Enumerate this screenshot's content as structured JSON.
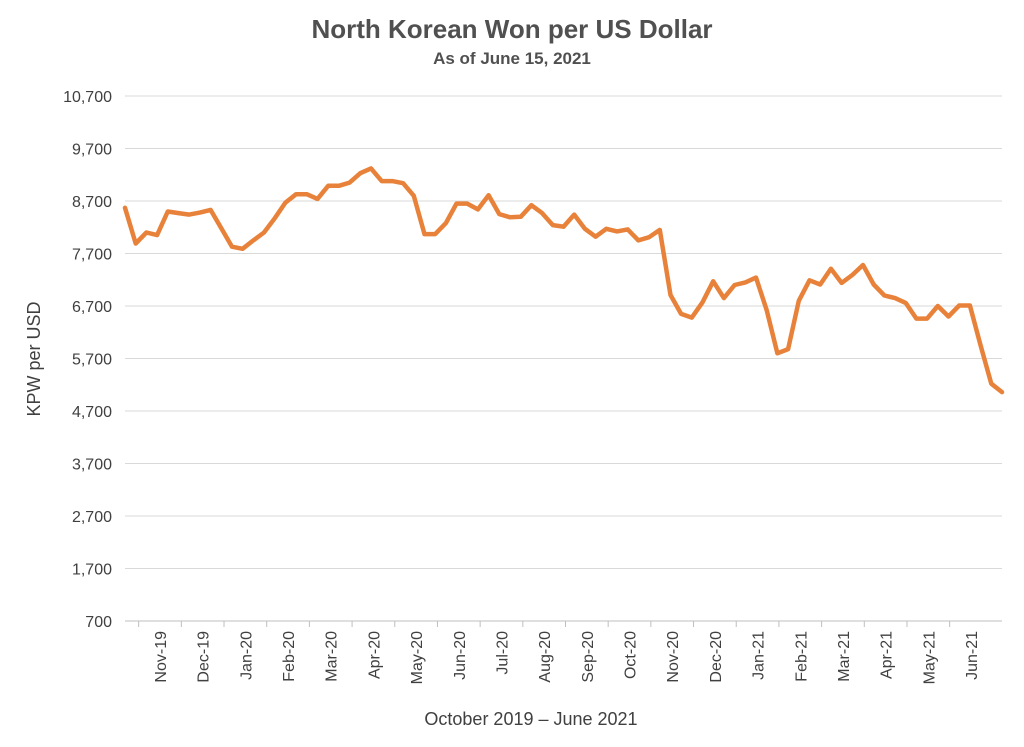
{
  "chart_data": {
    "type": "line",
    "title": "North Korean Won per US Dollar",
    "subtitle": "As of June 15, 2021",
    "xlabel": "October 2019 – June 2021",
    "ylabel": "KPW per USD",
    "ylim": [
      700,
      10700
    ],
    "yticks": [
      "10,700",
      "9,700",
      "8,700",
      "7,700",
      "6,700",
      "5,700",
      "4,700",
      "3,700",
      "2,700",
      "1,700",
      "700"
    ],
    "xticks": [
      "Nov-19",
      "Dec-19",
      "Jan-20",
      "Feb-20",
      "Mar-20",
      "Apr-20",
      "May-20",
      "Jun-20",
      "Jul-20",
      "Aug-20",
      "Sep-20",
      "Oct-20",
      "Nov-20",
      "Dec-20",
      "Jan-21",
      "Feb-21",
      "Mar-21",
      "Apr-21",
      "May-21",
      "Jun-21"
    ],
    "grid": "horizontal",
    "line_color": "#E8823A",
    "series": [
      {
        "values": [
          8570,
          7890,
          8100,
          8050,
          8500,
          8470,
          8440,
          8480,
          8530,
          8180,
          7830,
          7790,
          7950,
          8100,
          8370,
          8670,
          8830,
          8830,
          8740,
          8990,
          8990,
          9050,
          9230,
          9320,
          9080,
          9080,
          9040,
          8800,
          8070,
          8070,
          8280,
          8650,
          8650,
          8540,
          8810,
          8450,
          8390,
          8400,
          8620,
          8470,
          8240,
          8210,
          8440,
          8170,
          8020,
          8170,
          8120,
          8160,
          7950,
          8010,
          8150,
          6910,
          6550,
          6480,
          6770,
          7170,
          6850,
          7100,
          7150,
          7240,
          6620,
          5800,
          5880,
          6800,
          7190,
          7110,
          7410,
          7140,
          7290,
          7480,
          7110,
          6900,
          6850,
          6760,
          6460,
          6460,
          6700,
          6500,
          6710,
          6710,
          5950,
          5220,
          5060
        ]
      }
    ]
  }
}
